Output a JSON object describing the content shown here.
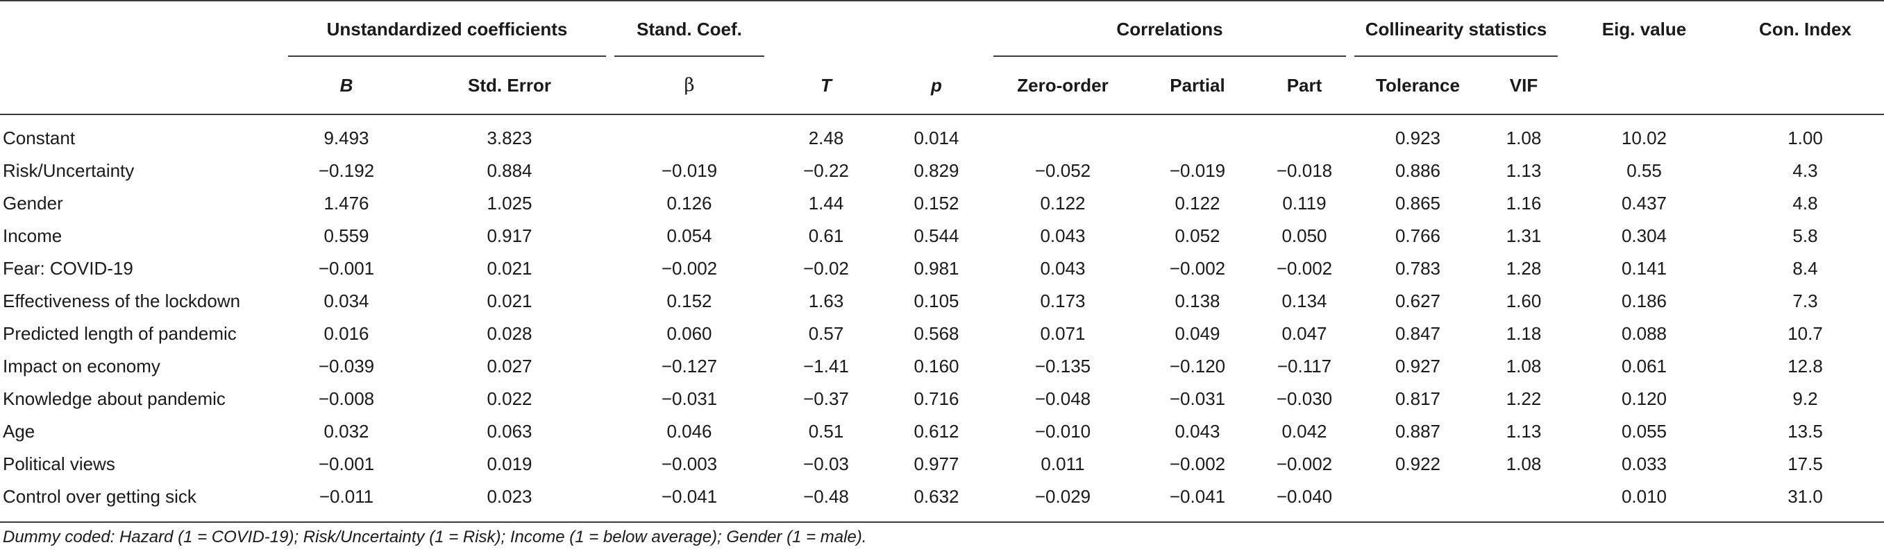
{
  "headers": {
    "group1": {
      "unstandardized": "Unstandardized coefficients",
      "stand_coef": "Stand. Coef.",
      "correlations": "Correlations",
      "collinearity": "Collinearity statistics",
      "eig_value": "Eig. value",
      "con_index": "Con. Index"
    },
    "group2": {
      "b": "B",
      "std_error": "Std. Error",
      "beta": "β",
      "t": "T",
      "p": "p",
      "zero_order": "Zero-order",
      "partial": "Partial",
      "part": "Part",
      "tolerance": "Tolerance",
      "vif": "VIF"
    }
  },
  "rows": [
    {
      "label": "Constant",
      "b": "9.493",
      "se": "3.823",
      "beta": "",
      "t": "2.48",
      "p": "0.014",
      "zero": "",
      "partial": "",
      "part": "",
      "tol": "0.923",
      "vif": "1.08",
      "eig": "10.02",
      "ci": "1.00"
    },
    {
      "label": "Risk/Uncertainty",
      "b": "−0.192",
      "se": "0.884",
      "beta": "−0.019",
      "t": "−0.22",
      "p": "0.829",
      "zero": "−0.052",
      "partial": "−0.019",
      "part": "−0.018",
      "tol": "0.886",
      "vif": "1.13",
      "eig": "0.55",
      "ci": "4.3"
    },
    {
      "label": "Gender",
      "b": "1.476",
      "se": "1.025",
      "beta": "0.126",
      "t": "1.44",
      "p": "0.152",
      "zero": "0.122",
      "partial": "0.122",
      "part": "0.119",
      "tol": "0.865",
      "vif": "1.16",
      "eig": "0.437",
      "ci": "4.8"
    },
    {
      "label": "Income",
      "b": "0.559",
      "se": "0.917",
      "beta": "0.054",
      "t": "0.61",
      "p": "0.544",
      "zero": "0.043",
      "partial": "0.052",
      "part": "0.050",
      "tol": "0.766",
      "vif": "1.31",
      "eig": "0.304",
      "ci": "5.8"
    },
    {
      "label": "Fear: COVID-19",
      "b": "−0.001",
      "se": "0.021",
      "beta": "−0.002",
      "t": "−0.02",
      "p": "0.981",
      "zero": "0.043",
      "partial": "−0.002",
      "part": "−0.002",
      "tol": "0.783",
      "vif": "1.28",
      "eig": "0.141",
      "ci": "8.4"
    },
    {
      "label": "Effectiveness of the lockdown",
      "b": "0.034",
      "se": "0.021",
      "beta": "0.152",
      "t": "1.63",
      "p": "0.105",
      "zero": "0.173",
      "partial": "0.138",
      "part": "0.134",
      "tol": "0.627",
      "vif": "1.60",
      "eig": "0.186",
      "ci": "7.3"
    },
    {
      "label": "Predicted length of pandemic",
      "b": "0.016",
      "se": "0.028",
      "beta": "0.060",
      "t": "0.57",
      "p": "0.568",
      "zero": "0.071",
      "partial": "0.049",
      "part": "0.047",
      "tol": "0.847",
      "vif": "1.18",
      "eig": "0.088",
      "ci": "10.7"
    },
    {
      "label": "Impact on economy",
      "b": "−0.039",
      "se": "0.027",
      "beta": "−0.127",
      "t": "−1.41",
      "p": "0.160",
      "zero": "−0.135",
      "partial": "−0.120",
      "part": "−0.117",
      "tol": "0.927",
      "vif": "1.08",
      "eig": "0.061",
      "ci": "12.8"
    },
    {
      "label": "Knowledge about pandemic",
      "b": "−0.008",
      "se": "0.022",
      "beta": "−0.031",
      "t": "−0.37",
      "p": "0.716",
      "zero": "−0.048",
      "partial": "−0.031",
      "part": "−0.030",
      "tol": "0.817",
      "vif": "1.22",
      "eig": "0.120",
      "ci": "9.2"
    },
    {
      "label": "Age",
      "b": "0.032",
      "se": "0.063",
      "beta": "0.046",
      "t": "0.51",
      "p": "0.612",
      "zero": "−0.010",
      "partial": "0.043",
      "part": "0.042",
      "tol": "0.887",
      "vif": "1.13",
      "eig": "0.055",
      "ci": "13.5"
    },
    {
      "label": "Political views",
      "b": "−0.001",
      "se": "0.019",
      "beta": "−0.003",
      "t": "−0.03",
      "p": "0.977",
      "zero": "0.011",
      "partial": "−0.002",
      "part": "−0.002",
      "tol": "0.922",
      "vif": "1.08",
      "eig": "0.033",
      "ci": "17.5"
    },
    {
      "label": "Control over getting sick",
      "b": "−0.011",
      "se": "0.023",
      "beta": "−0.041",
      "t": "−0.48",
      "p": "0.632",
      "zero": "−0.029",
      "partial": "−0.041",
      "part": "−0.040",
      "tol": "",
      "vif": "",
      "eig": "0.010",
      "ci": "31.0"
    }
  ],
  "footnote": "Dummy coded: Hazard (1 = COVID-19); Risk/Uncertainty (1 = Risk); Income (1 = below average); Gender (1 = male)."
}
